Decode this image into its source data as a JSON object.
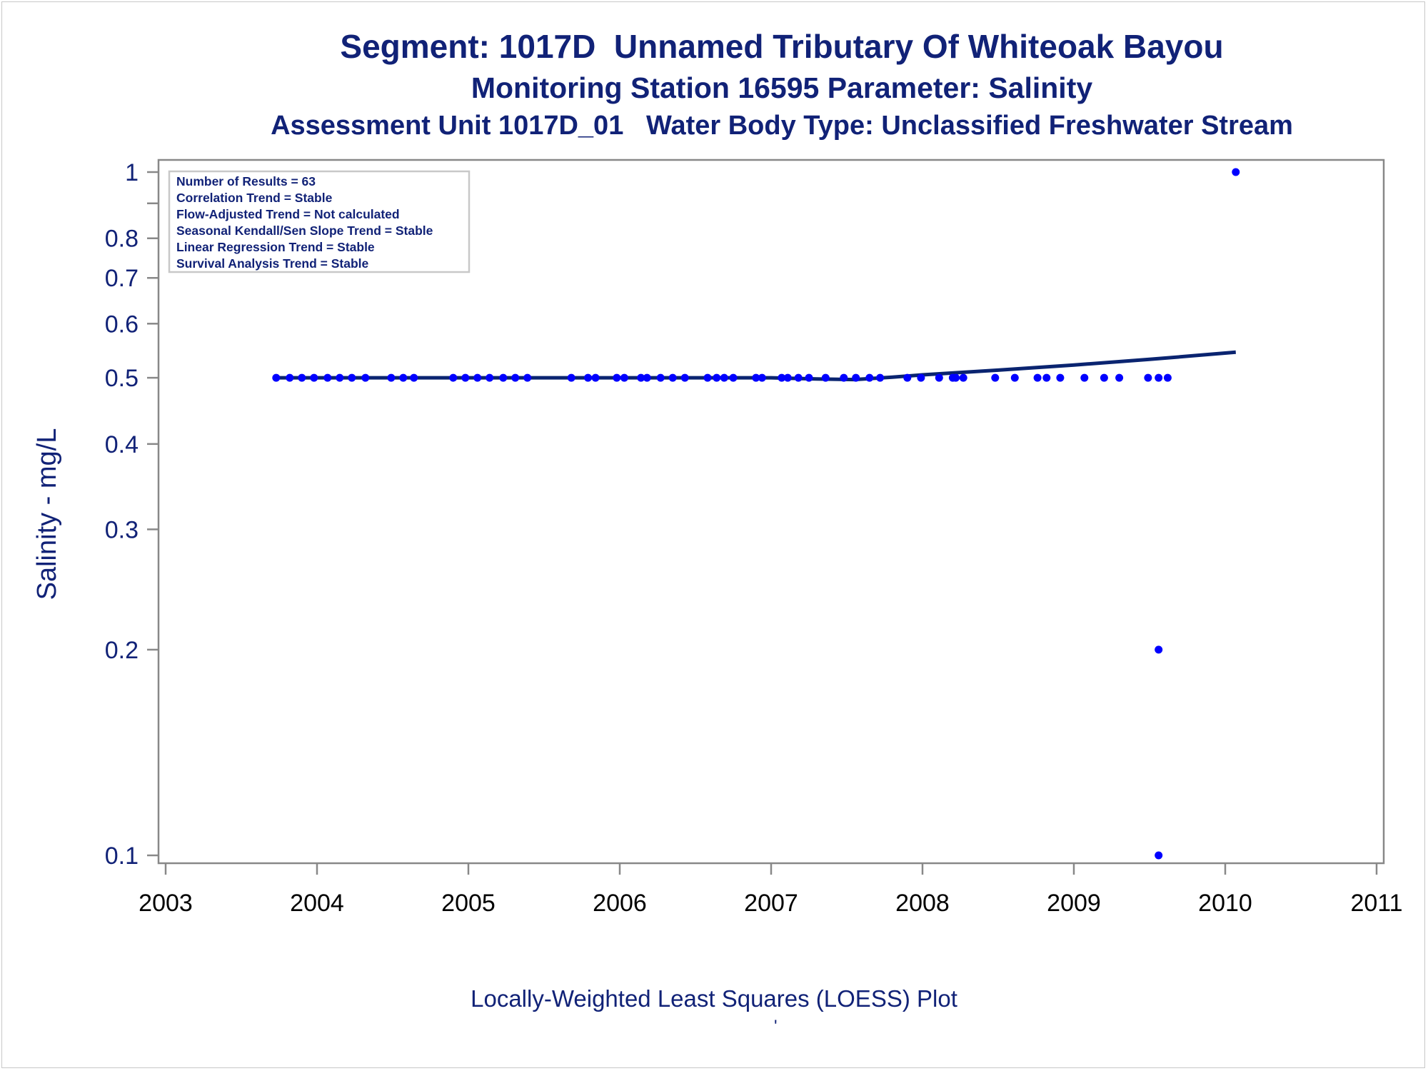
{
  "title": "Segment: 1017D  Unnamed Tributary Of Whiteoak Bayou",
  "subtitle": "Monitoring Station 16595 Parameter: Salinity",
  "subtitle2": "Assessment Unit 1017D_01   Water Body Type: Unclassified Freshwater Stream",
  "footnote": "Locally-Weighted Least Squares (LOESS) Plot",
  "footnote_mark": "'",
  "colors": {
    "text": "#112277",
    "points": "#0000ff",
    "loess_line": "#0a2470",
    "axis": "#888888"
  },
  "chart_data": {
    "type": "scatter",
    "title": "Segment: 1017D  Unnamed Tributary Of Whiteoak Bayou",
    "xlabel": "",
    "ylabel": "Salinity - mg/L",
    "y_scale": "log",
    "xlim": [
      2003,
      2011
    ],
    "ylim": [
      0.1,
      1
    ],
    "x_ticks": [
      "2003",
      "2004",
      "2005",
      "2006",
      "2007",
      "2008",
      "2009",
      "2010",
      "2011"
    ],
    "y_ticks": [
      "0.1",
      "0.2",
      "0.3",
      "0.4",
      "0.5",
      "0.6",
      "0.7",
      "0.8",
      "1"
    ],
    "grid": false,
    "legend_box": {
      "placement": "top-left",
      "lines": [
        "Number of Results = 63",
        "Correlation Trend = Stable",
        "Flow-Adjusted Trend = Not calculated",
        "Seasonal Kendall/Sen Slope Trend = Stable",
        "Linear Regression Trend = Stable",
        "Survival Analysis Trend = Stable"
      ]
    },
    "series": [
      {
        "kind": "points",
        "x": [
          2003.73,
          2003.82,
          2003.9,
          2003.98,
          2004.07,
          2004.15,
          2004.23,
          2004.32,
          2004.49,
          2004.57,
          2004.64,
          2004.9,
          2004.98,
          2005.06,
          2005.14,
          2005.23,
          2005.31,
          2005.39,
          2005.68,
          2005.79,
          2005.84,
          2005.98,
          2006.03,
          2006.14,
          2006.18,
          2006.27,
          2006.35,
          2006.43,
          2006.58,
          2006.64,
          2006.69,
          2006.75,
          2006.9,
          2006.94,
          2007.07,
          2007.11,
          2007.18,
          2007.25,
          2007.36,
          2007.48,
          2007.56,
          2007.65,
          2007.72,
          2007.9,
          2007.99,
          2008.11,
          2008.2,
          2008.22,
          2008.27,
          2008.48,
          2008.61,
          2008.76,
          2008.82,
          2008.91,
          2009.07,
          2009.2,
          2009.3,
          2009.49,
          2009.56,
          2009.62,
          2009.56,
          2009.56,
          2010.07
        ],
        "y": [
          0.5,
          0.5,
          0.5,
          0.5,
          0.5,
          0.5,
          0.5,
          0.5,
          0.5,
          0.5,
          0.5,
          0.5,
          0.5,
          0.5,
          0.5,
          0.5,
          0.5,
          0.5,
          0.5,
          0.5,
          0.5,
          0.5,
          0.5,
          0.5,
          0.5,
          0.5,
          0.5,
          0.5,
          0.5,
          0.5,
          0.5,
          0.5,
          0.5,
          0.5,
          0.5,
          0.5,
          0.5,
          0.5,
          0.5,
          0.5,
          0.5,
          0.5,
          0.5,
          0.5,
          0.5,
          0.5,
          0.5,
          0.5,
          0.5,
          0.5,
          0.5,
          0.5,
          0.5,
          0.5,
          0.5,
          0.5,
          0.5,
          0.5,
          0.5,
          0.5,
          0.2,
          0.1,
          1.0
        ]
      },
      {
        "kind": "line",
        "x": [
          2003.73,
          2007.0,
          2007.3,
          2007.55,
          2007.8,
          2008.0,
          2008.5,
          2009.0,
          2009.5,
          2010.07
        ],
        "y": [
          0.5,
          0.5,
          0.498,
          0.497,
          0.501,
          0.505,
          0.513,
          0.522,
          0.532,
          0.545
        ]
      }
    ]
  }
}
